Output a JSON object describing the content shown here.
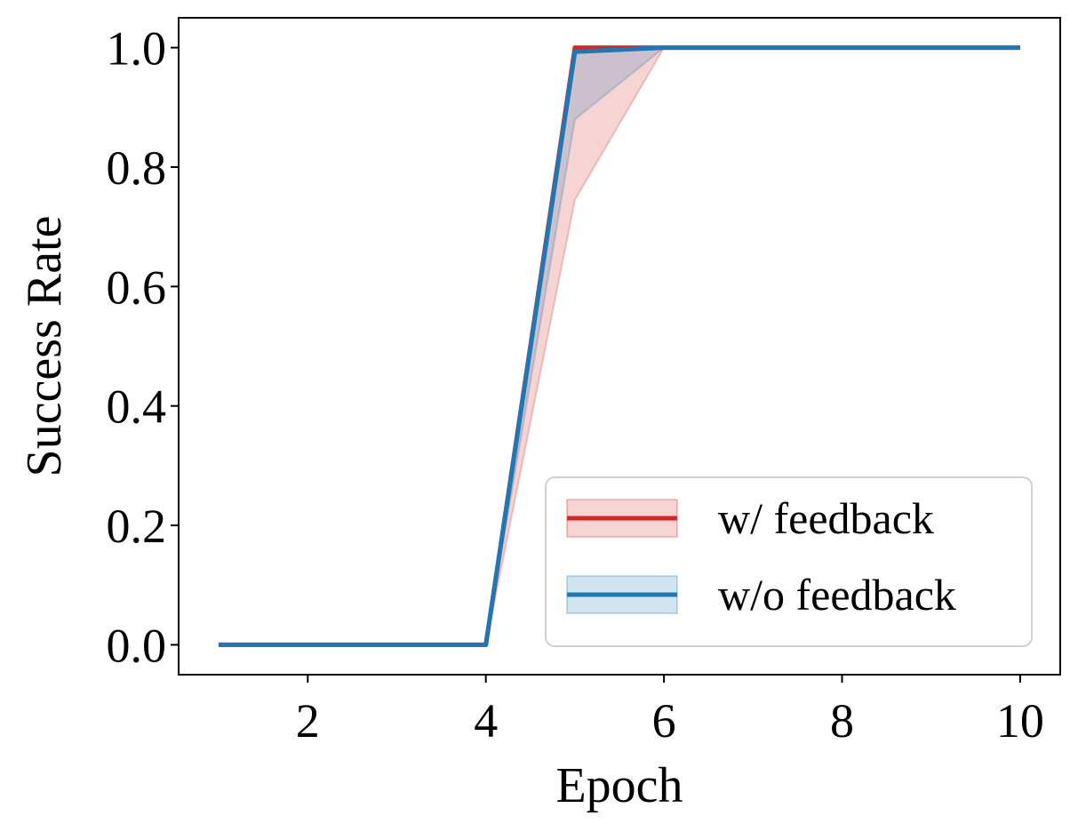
{
  "chart_data": {
    "type": "line",
    "x": [
      1,
      2,
      3,
      4,
      5,
      6,
      7,
      8,
      9,
      10
    ],
    "xlabel": "Epoch",
    "ylabel": "Success Rate",
    "xlim": [
      0.55,
      10.45
    ],
    "ylim": [
      -0.05,
      1.05
    ],
    "xticks": [
      2,
      4,
      6,
      8,
      10
    ],
    "yticks": [
      0.0,
      0.2,
      0.4,
      0.6,
      0.8,
      1.0
    ],
    "xtick_labels": [
      "2",
      "4",
      "6",
      "8",
      "10"
    ],
    "ytick_labels": [
      "0.0",
      "0.2",
      "0.4",
      "0.6",
      "0.8",
      "1.0"
    ],
    "grid": false,
    "legend_position": "lower-right",
    "series": [
      {
        "name": "w/ feedback",
        "color": "#d62728",
        "values": [
          0,
          0,
          0,
          0,
          1.0,
          1.0,
          1.0,
          1.0,
          1.0,
          1.0
        ],
        "lower": [
          0,
          0,
          0,
          0,
          0.745,
          1.0,
          1.0,
          1.0,
          1.0,
          1.0
        ],
        "upper": [
          0,
          0,
          0,
          0,
          1.0,
          1.0,
          1.0,
          1.0,
          1.0,
          1.0
        ]
      },
      {
        "name": "w/o feedback",
        "color": "#1f77b4",
        "values": [
          0,
          0,
          0,
          0,
          0.993,
          1.0,
          1.0,
          1.0,
          1.0,
          1.0
        ],
        "lower": [
          0,
          0,
          0,
          0,
          0.88,
          1.0,
          1.0,
          1.0,
          1.0,
          1.0
        ],
        "upper": [
          0,
          0,
          0,
          0,
          1.0,
          1.0,
          1.0,
          1.0,
          1.0,
          1.0
        ]
      }
    ]
  }
}
